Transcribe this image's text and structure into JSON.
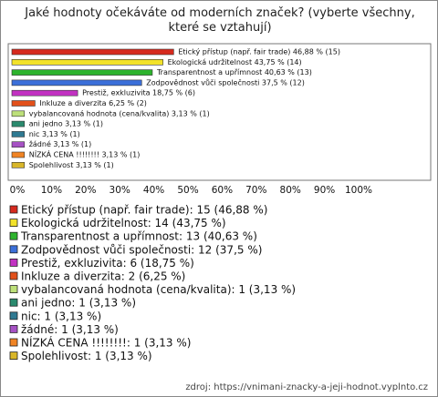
{
  "chart_data": {
    "type": "bar",
    "orientation": "horizontal",
    "title": "Jaké hodnoty očekáváte od moderních značek? (vyberte všechny, které se vztahují)",
    "values": [
      46.88,
      43.75,
      40.63,
      37.5,
      18.75,
      6.25,
      3.13,
      3.13,
      3.13,
      3.13,
      3.13,
      3.13
    ],
    "value_labels": [
      "Etický přístup (např. fair trade) 46,88 % (15)",
      "Ekologická udržitelnost 43,75 % (14)",
      "Transparentnost a upřímnost 40,63 % (13)",
      "Zodpovědnost vůči společnosti 37,5 % (12)",
      "Prestiž, exkluzivita 18,75 % (6)",
      "Inkluze a diverzita 6,25 % (2)",
      "vybalancovaná hodnota (cena/kvalita) 3,13 % (1)",
      "ani jedno 3,13 % (1)",
      "nic 3,13 % (1)",
      "žádné 3,13 % (1)",
      "NÍZKÁ CENA !!!!!!!! 3,13 % (1)",
      "Spolehlivost 3,13 % (1)"
    ],
    "legend_labels": [
      "Etický přístup (např. fair trade): 15 (46,88 %)",
      "Ekologická udržitelnost: 14 (43,75 %)",
      "Transparentnost a upřímnost: 13 (40,63 %)",
      "Zodpovědnost vůči společnosti: 12 (37,5 %)",
      "Prestiž, exkluzivita: 6 (18,75 %)",
      "Inkluze a diverzita: 2 (6,25 %)",
      "vybalancovaná hodnota (cena/kvalita): 1 (3,13 %)",
      "ani jedno: 1 (3,13 %)",
      "nic: 1 (3,13 %)",
      "žádné: 1 (3,13 %)",
      "NÍZKÁ CENA !!!!!!!!: 1 (3,13 %)",
      "Spolehlivost: 1 (3,13 %)"
    ],
    "colors": [
      "#d62a1e",
      "#f2e22a",
      "#2db32d",
      "#3b6fd9",
      "#c232c2",
      "#e2501a",
      "#bde07a",
      "#2a8a6e",
      "#2f7a92",
      "#a652c4",
      "#f08424",
      "#d8b62a"
    ],
    "xlim": [
      0,
      100
    ],
    "xticks": [
      {
        "value": 0,
        "label": "0%"
      },
      {
        "value": 10,
        "label": "10%"
      },
      {
        "value": 20,
        "label": "20%"
      },
      {
        "value": 30,
        "label": "30%"
      },
      {
        "value": 40,
        "label": "40%"
      },
      {
        "value": 50,
        "label": "50%"
      },
      {
        "value": 60,
        "label": "60%"
      },
      {
        "value": 70,
        "label": "70%"
      },
      {
        "value": 80,
        "label": "80%"
      },
      {
        "value": 90,
        "label": "90%"
      },
      {
        "value": 100,
        "label": "100%"
      }
    ],
    "source": "zdroj: https://vnimani-znacky-a-jeji-hodnot.vyplnto.cz"
  }
}
